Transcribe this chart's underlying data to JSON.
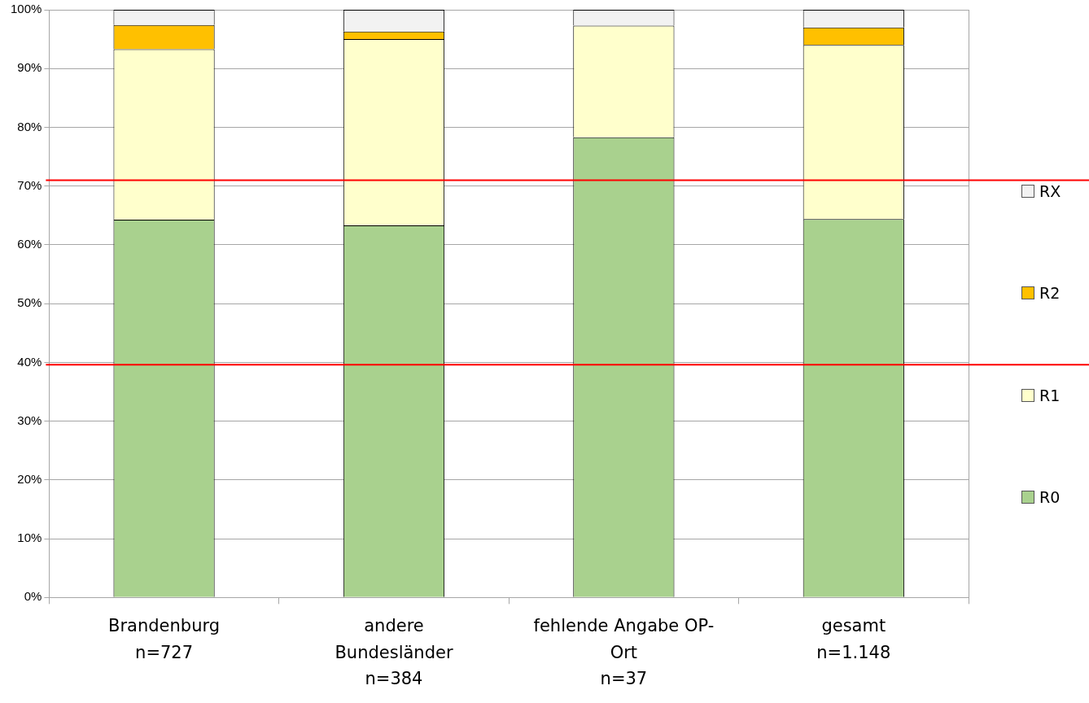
{
  "chart_data": {
    "type": "bar",
    "stacked": true,
    "categories": [
      "Brandenburg\nn=727",
      "andere\nBundesländer\nn=384",
      "fehlende Angabe OP-\nOrt\nn=37",
      "gesamt\nn=1.148"
    ],
    "series": [
      {
        "name": "R0",
        "color": "#a9d18e",
        "values": [
          64.3,
          63.3,
          78.3,
          64.4
        ]
      },
      {
        "name": "R1",
        "color": "#ffffcc",
        "values": [
          29.0,
          31.7,
          19.0,
          29.6
        ]
      },
      {
        "name": "R2",
        "color": "#ffc000",
        "values": [
          4.1,
          1.3,
          0,
          3.0
        ]
      },
      {
        "name": "RX",
        "color": "#f2f2f2",
        "values": [
          2.6,
          3.7,
          2.7,
          3.0
        ]
      }
    ],
    "ylim": [
      0,
      100
    ],
    "yticks": [
      {
        "value": 0,
        "label": "0%"
      },
      {
        "value": 10,
        "label": "10%"
      },
      {
        "value": 20,
        "label": "20%"
      },
      {
        "value": 30,
        "label": "30%"
      },
      {
        "value": 40,
        "label": "40%"
      },
      {
        "value": 50,
        "label": "50%"
      },
      {
        "value": 60,
        "label": "60%"
      },
      {
        "value": 70,
        "label": "70%"
      },
      {
        "value": 80,
        "label": "80%"
      },
      {
        "value": 90,
        "label": "90%"
      },
      {
        "value": 100,
        "label": "100%"
      }
    ],
    "ref_lines": [
      {
        "axis": "y",
        "value": 71.0,
        "color": "#ff0000"
      },
      {
        "axis": "y",
        "value": 39.6,
        "color": "#ff0000"
      }
    ],
    "grid": "y",
    "legend": "right"
  }
}
